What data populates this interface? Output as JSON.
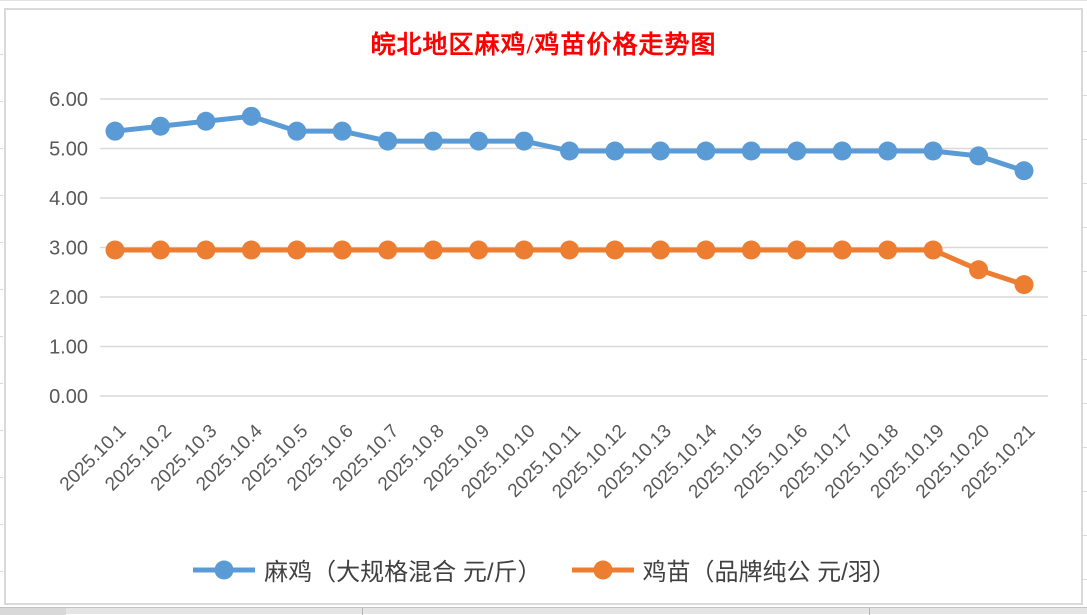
{
  "chart_data": {
    "type": "line",
    "title": "皖北地区麻鸡/鸡苗价格走势图",
    "xlabel": "",
    "ylabel": "",
    "categories": [
      "2025.10.1",
      "2025.10.2",
      "2025.10.3",
      "2025.10.4",
      "2025.10.5",
      "2025.10.6",
      "2025.10.7",
      "2025.10.8",
      "2025.10.9",
      "2025.10.10",
      "2025.10.11",
      "2025.10.12",
      "2025.10.13",
      "2025.10.14",
      "2025.10.15",
      "2025.10.16",
      "2025.10.17",
      "2025.10.18",
      "2025.10.19",
      "2025.10.20",
      "2025.10.21"
    ],
    "series": [
      {
        "name": "麻鸡（大规格混合 元/斤）",
        "color": "#5B9BD5",
        "values": [
          5.35,
          5.45,
          5.55,
          5.65,
          5.35,
          5.35,
          5.15,
          5.15,
          5.15,
          5.15,
          4.95,
          4.95,
          4.95,
          4.95,
          4.95,
          4.95,
          4.95,
          4.95,
          4.95,
          4.85,
          4.55
        ]
      },
      {
        "name": "鸡苗（品牌纯公 元/羽）",
        "color": "#ED7D31",
        "values": [
          2.95,
          2.95,
          2.95,
          2.95,
          2.95,
          2.95,
          2.95,
          2.95,
          2.95,
          2.95,
          2.95,
          2.95,
          2.95,
          2.95,
          2.95,
          2.95,
          2.95,
          2.95,
          2.95,
          2.55,
          2.25
        ]
      }
    ],
    "ylim": [
      0,
      6
    ],
    "y_ticks": [
      "6.00",
      "5.00",
      "4.00",
      "3.00",
      "2.00",
      "1.00",
      "0.00"
    ],
    "y_tick_values": [
      6,
      5,
      4,
      3,
      2,
      1,
      0
    ],
    "grid": true,
    "legend_position": "bottom"
  },
  "colors": {
    "title_text": "#FF0000",
    "axis_text": "#595959",
    "gridline": "#D9D9D9",
    "legend_text": "#404040",
    "frame_border": "#D9D9D9"
  }
}
